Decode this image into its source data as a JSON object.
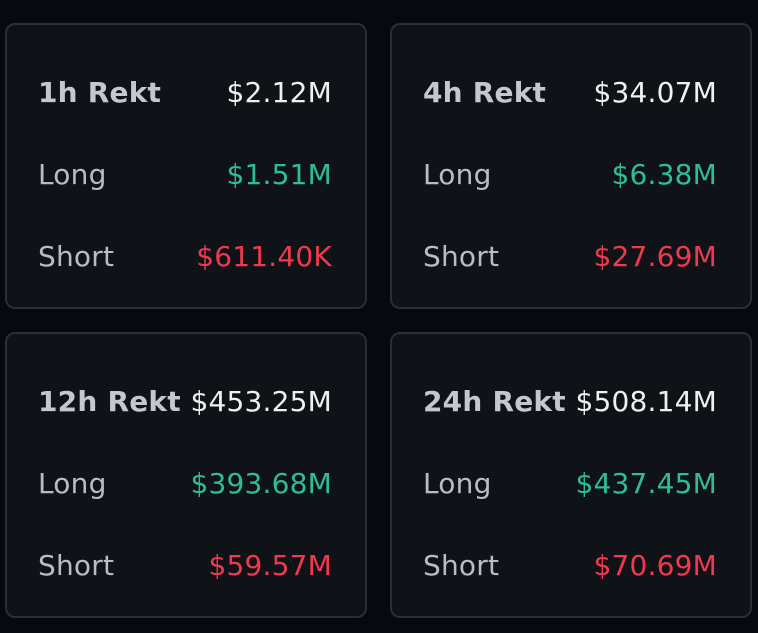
{
  "cards": [
    {
      "title": "1h Rekt",
      "total": "$2.12M",
      "long_label": "Long",
      "long": "$1.51M",
      "short_label": "Short",
      "short": "$611.40K"
    },
    {
      "title": "4h Rekt",
      "total": "$34.07M",
      "long_label": "Long",
      "long": "$6.38M",
      "short_label": "Short",
      "short": "$27.69M"
    },
    {
      "title": "12h Rekt",
      "total": "$453.25M",
      "long_label": "Long",
      "long": "$393.68M",
      "short_label": "Short",
      "short": "$59.57M"
    },
    {
      "title": "24h Rekt",
      "total": "$508.14M",
      "long_label": "Long",
      "long": "$437.45M",
      "short_label": "Short",
      "short": "$70.69M"
    }
  ],
  "colors": {
    "background": "#070810",
    "card": "#0f1217",
    "border": "#2a2e36",
    "long": "#2ebd98",
    "short": "#f0394f",
    "total": "#eef0f3",
    "label": "#b8bcc4"
  }
}
